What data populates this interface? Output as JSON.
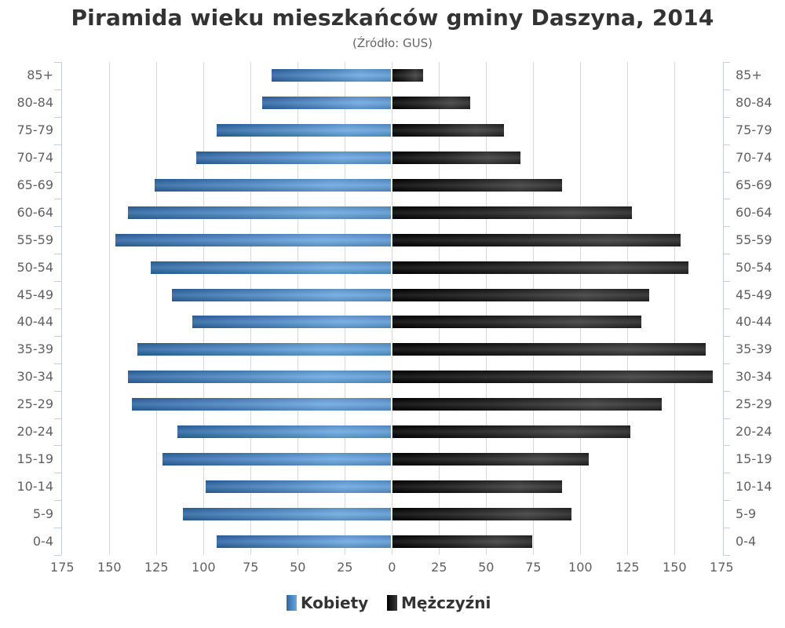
{
  "chart_data": {
    "type": "bar",
    "orientation": "horizontal",
    "layout": "population-pyramid",
    "title": "Piramida wieku mieszkańców gminy Daszyna, 2014",
    "subtitle": "(Źródło: GUS)",
    "categories": [
      "85+",
      "80-84",
      "75-79",
      "70-74",
      "65-69",
      "60-64",
      "55-59",
      "50-54",
      "45-49",
      "40-44",
      "35-39",
      "30-34",
      "25-29",
      "20-24",
      "15-19",
      "10-14",
      "5-9",
      "0-4"
    ],
    "series": [
      {
        "name": "Kobiety",
        "side": "left",
        "color": "#4a86c4",
        "values": [
          64,
          69,
          93,
          104,
          126,
          140,
          147,
          128,
          117,
          106,
          135,
          140,
          138,
          114,
          122,
          99,
          111,
          93
        ]
      },
      {
        "name": "Mężczyźni",
        "side": "right",
        "color": "#1a1a1a",
        "values": [
          16,
          41,
          59,
          68,
          90,
          127,
          153,
          157,
          136,
          132,
          166,
          170,
          143,
          126,
          104,
          90,
          95,
          74
        ]
      }
    ],
    "x_ticks": [
      175,
      150,
      125,
      100,
      75,
      50,
      25,
      0,
      25,
      50,
      75,
      100,
      125,
      150,
      175
    ],
    "xlim": [
      -175,
      175
    ],
    "xlabel": "",
    "ylabel": "",
    "grid": true,
    "legend_position": "bottom"
  },
  "legend": {
    "items": [
      {
        "label": "Kobiety"
      },
      {
        "label": "Mężczyźni"
      }
    ]
  }
}
